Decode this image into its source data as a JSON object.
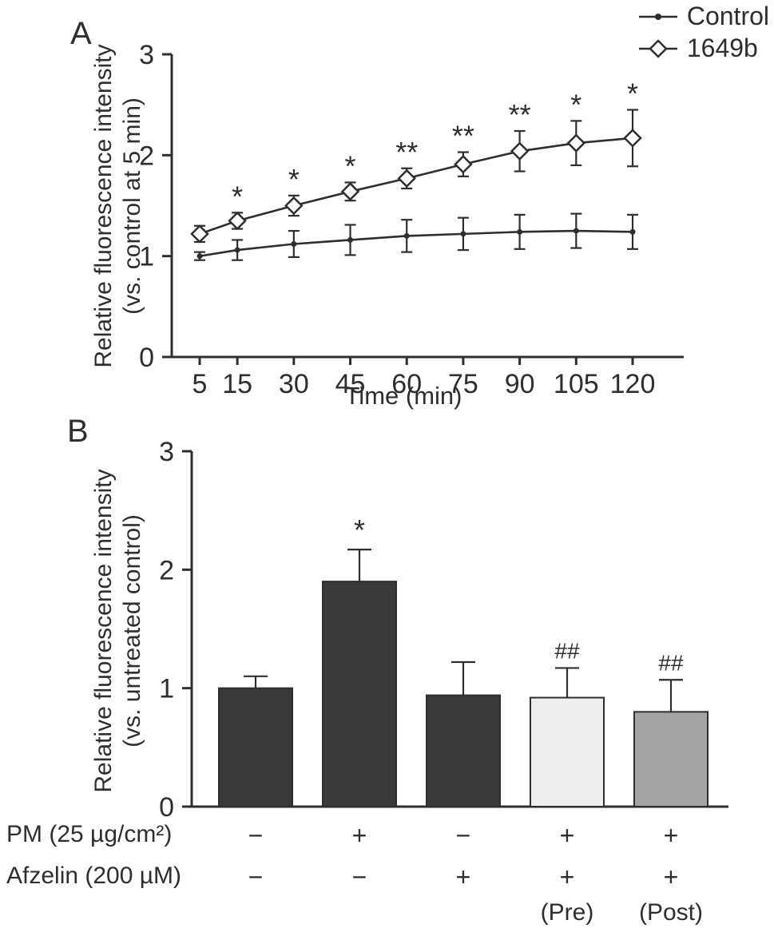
{
  "figure": {
    "panel_a_label": "A",
    "panel_b_label": "B"
  },
  "chart_data": [
    {
      "type": "line",
      "xlabel": "Time (min)",
      "ylabel": "Relative fluorescence intensity (vs. control at 5 min)",
      "ylabel_lines": [
        "Relative fluorescence intensity",
        "(vs. control at 5 min)"
      ],
      "ylim": [
        0,
        3
      ],
      "yticks": [
        0,
        1,
        2,
        3
      ],
      "x": [
        5,
        15,
        30,
        45,
        60,
        75,
        90,
        105,
        120
      ],
      "series": [
        {
          "name": "Control",
          "marker": "dot",
          "values": [
            1.0,
            1.06,
            1.12,
            1.16,
            1.2,
            1.22,
            1.24,
            1.25,
            1.24
          ],
          "errors": [
            0.04,
            0.1,
            0.13,
            0.15,
            0.16,
            0.16,
            0.17,
            0.17,
            0.17
          ]
        },
        {
          "name": "1649b",
          "marker": "diamond",
          "values": [
            1.22,
            1.35,
            1.5,
            1.64,
            1.77,
            1.91,
            2.04,
            2.12,
            2.17
          ],
          "errors": [
            0.08,
            0.08,
            0.1,
            0.09,
            0.1,
            0.12,
            0.2,
            0.22,
            0.28
          ]
        }
      ],
      "significance": [
        "",
        "*",
        "*",
        "*",
        "**",
        "**",
        "**",
        "*",
        "*"
      ],
      "legend_position": "top-right",
      "ink_color": "#2e2e2e"
    },
    {
      "type": "bar",
      "ylabel": "Relative fluorescence intensity (vs. untreated control)",
      "ylabel_lines": [
        "Relative fluorescence intensity",
        "(vs. untreated control)"
      ],
      "ylim": [
        0,
        3
      ],
      "yticks": [
        0,
        1,
        2,
        3
      ],
      "values": [
        1.0,
        1.9,
        0.94,
        0.92,
        0.8
      ],
      "errors": [
        0.1,
        0.27,
        0.28,
        0.25,
        0.27
      ],
      "bar_colors": [
        "#3a3a3a",
        "#3a3a3a",
        "#3a3a3a",
        "#ededed",
        "#a3a3a3"
      ],
      "significance": [
        "",
        "*",
        "",
        "##",
        "##"
      ],
      "conditions": {
        "rows": [
          {
            "label": "PM (25 µg/cm²)",
            "values": [
              "−",
              "+",
              "−",
              "+",
              "+"
            ]
          },
          {
            "label": "Afzelin (200 µM)",
            "values": [
              "−",
              "−",
              "+",
              "+",
              "+"
            ]
          }
        ],
        "timing": [
          "",
          "",
          "",
          "(Pre)",
          "(Post)"
        ]
      },
      "ink_color": "#2e2e2e"
    }
  ]
}
